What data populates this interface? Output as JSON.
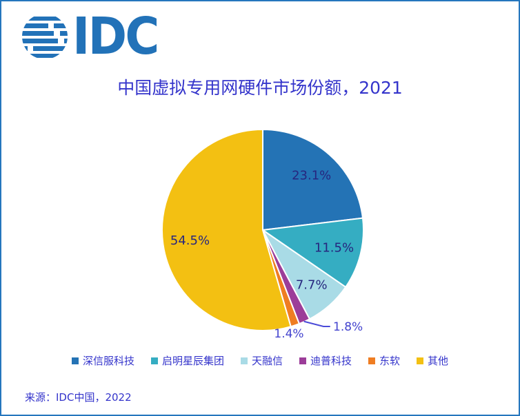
{
  "logo": {
    "text": "IDC"
  },
  "title": {
    "text": "中国虚拟专用网硬件市场份额，2021"
  },
  "source": {
    "text": "来源：IDC中国，2022"
  },
  "colors": {
    "page_border": "#2576BD",
    "logo_blue": "#2272B8",
    "title_text": "#3434CB",
    "legend_text": "#3434CB",
    "source_text": "#3434CB",
    "label_inside": "#26267F",
    "label_outside": "#4343CE",
    "leader_line": "#4A4AD8"
  },
  "chart_data": {
    "type": "pie",
    "title": "中国虚拟专用网硬件市场份额，2021",
    "categories": [
      "深信服科技",
      "启明星辰集团",
      "天融信",
      "迪普科技",
      "东软",
      "其他"
    ],
    "values": [
      23.1,
      11.5,
      7.7,
      1.8,
      1.4,
      54.5
    ],
    "labels": [
      "23.1%",
      "11.5%",
      "7.7%",
      "1.8%",
      "1.4%",
      "54.5%"
    ],
    "colors": [
      "#2473B5",
      "#35ADC2",
      "#A9DBE6",
      "#9C3D99",
      "#EF7D22",
      "#F3C012"
    ],
    "unit": "%",
    "start_angle": "12-oclock",
    "direction": "clockwise",
    "slice_border_color": "#ffffff",
    "legend_position": "bottom",
    "source": "来源：IDC中国，2022"
  }
}
